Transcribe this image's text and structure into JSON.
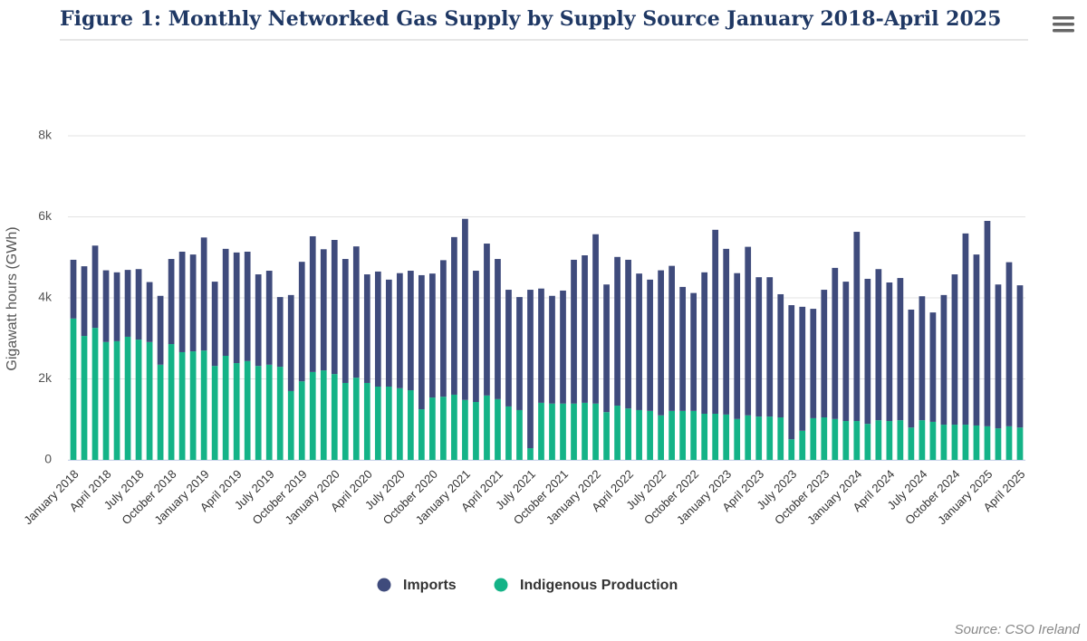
{
  "chart_data": {
    "type": "stacked_bar",
    "title": "Figure 1: Monthly Networked Gas Supply by Supply Source January 2018-April 2025",
    "y_axis_title": "Gigawatt hours (GWh)",
    "source": "Source: CSO Ireland",
    "categories": [
      "January 2018",
      null,
      null,
      "April 2018",
      null,
      null,
      "July 2018",
      null,
      null,
      "October 2018",
      null,
      null,
      "January 2019",
      null,
      null,
      "April 2019",
      null,
      null,
      "July 2019",
      null,
      null,
      "October 2019",
      null,
      null,
      "January 2020",
      null,
      null,
      "April 2020",
      null,
      null,
      "July 2020",
      null,
      null,
      "October 2020",
      null,
      null,
      "January 2021",
      null,
      null,
      "April 2021",
      null,
      null,
      "July 2021",
      null,
      null,
      "October 2021",
      null,
      null,
      "January 2022",
      null,
      null,
      "April 2022",
      null,
      null,
      "July 2022",
      null,
      null,
      "October 2022",
      null,
      null,
      "January 2023",
      null,
      null,
      "April 2023",
      null,
      null,
      "July 2023",
      null,
      null,
      "October 2023",
      null,
      null,
      "January 2024",
      null,
      null,
      "April 2024",
      null,
      null,
      "July 2024",
      null,
      null,
      "October 2024",
      null,
      null,
      "January 2025",
      null,
      null,
      "April 2025"
    ],
    "series": [
      {
        "name": "Imports",
        "color": "#3f4b7c",
        "values": [
          1450,
          1720,
          2030,
          1770,
          1700,
          1650,
          1740,
          1480,
          1700,
          2100,
          2480,
          2390,
          2790,
          2080,
          2640,
          2730,
          2700,
          2260,
          2320,
          1720,
          2370,
          2950,
          3350,
          2990,
          3310,
          3060,
          3240,
          2680,
          2840,
          2640,
          2840,
          2950,
          3310,
          3060,
          3370,
          3890,
          4470,
          3240,
          3750,
          3460,
          2880,
          2790,
          3910,
          2820,
          2660,
          2790,
          3550,
          3640,
          4180,
          3150,
          3670,
          3670,
          3370,
          3240,
          3580,
          3580,
          3060,
          2910,
          3490,
          4540,
          4090,
          3600,
          4160,
          3440,
          3440,
          3040,
          3310,
          3060,
          2700,
          3150,
          3730,
          3440,
          4670,
          3580,
          3730,
          3420,
          3510,
          2910,
          3060,
          2700,
          3200,
          3710,
          4720,
          4220,
          5070,
          3550,
          4050,
          3510
        ]
      },
      {
        "name": "Indigenous Production",
        "color": "#14b387",
        "values": [
          3490,
          3060,
          3260,
          2910,
          2930,
          3040,
          2970,
          2910,
          2350,
          2860,
          2660,
          2680,
          2700,
          2320,
          2570,
          2390,
          2440,
          2320,
          2350,
          2300,
          1700,
          1940,
          2170,
          2210,
          2120,
          1900,
          2030,
          1900,
          1810,
          1810,
          1770,
          1720,
          1250,
          1540,
          1560,
          1610,
          1480,
          1430,
          1590,
          1500,
          1320,
          1230,
          290,
          1410,
          1390,
          1390,
          1390,
          1410,
          1390,
          1180,
          1340,
          1270,
          1230,
          1210,
          1100,
          1210,
          1210,
          1210,
          1140,
          1140,
          1120,
          1010,
          1100,
          1070,
          1070,
          1050,
          510,
          720,
          1030,
          1050,
          1010,
          960,
          960,
          890,
          980,
          960,
          980,
          800,
          980,
          940,
          870,
          870,
          870,
          850,
          830,
          780,
          830,
          800
        ]
      }
    ],
    "ylim": [
      0,
      8000
    ],
    "yticks": [
      0,
      {
        "value": 2000,
        "label": "2k"
      },
      {
        "value": 4000,
        "label": "4k"
      },
      {
        "value": 6000,
        "label": "6k"
      },
      {
        "value": 8000,
        "label": "8k"
      }
    ],
    "grid": true,
    "legend": "bottom"
  }
}
